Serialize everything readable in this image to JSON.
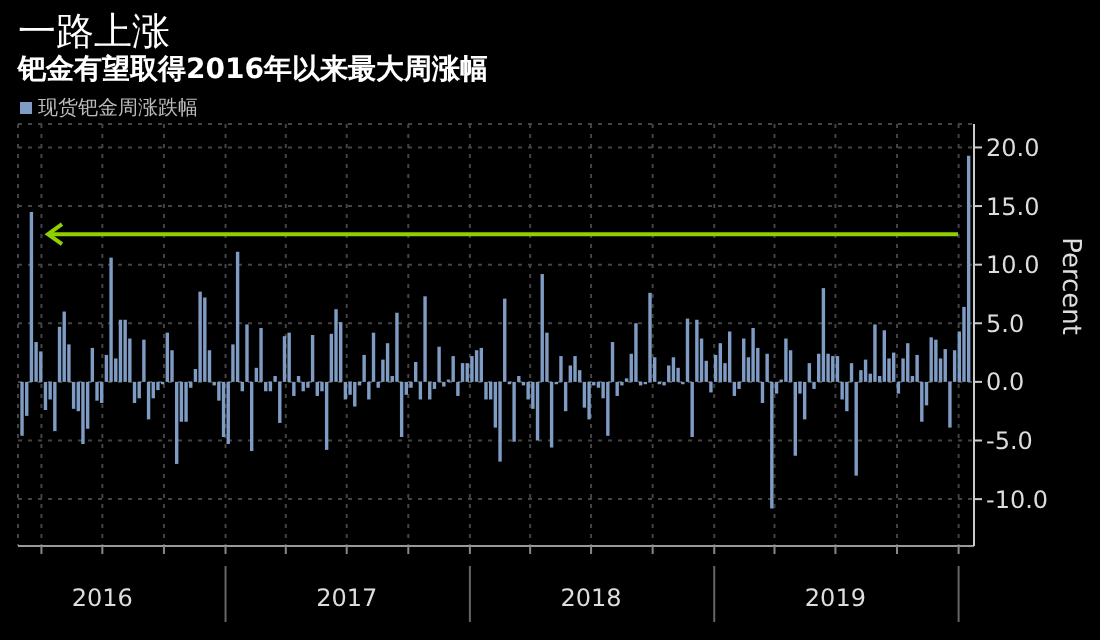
{
  "chart_data": {
    "type": "bar",
    "title": "一路上涨",
    "subtitle": "钯金有望取得2016年以来最大周涨幅",
    "ylabel": "Percent",
    "x": [
      "2016-03-04",
      "2016-03-11",
      "2016-03-18",
      "2016-03-25",
      "2016-04-01",
      "2016-04-08",
      "2016-04-15",
      "2016-04-22",
      "2016-04-29",
      "2016-05-06",
      "2016-05-13",
      "2016-05-20",
      "2016-05-27",
      "2016-06-03",
      "2016-06-10",
      "2016-06-17",
      "2016-06-24",
      "2016-07-01",
      "2016-07-08",
      "2016-07-15",
      "2016-07-22",
      "2016-07-29",
      "2016-08-05",
      "2016-08-12",
      "2016-08-19",
      "2016-08-26",
      "2016-09-02",
      "2016-09-09",
      "2016-09-16",
      "2016-09-23",
      "2016-09-30",
      "2016-10-07",
      "2016-10-14",
      "2016-10-21",
      "2016-10-28",
      "2016-11-04",
      "2016-11-11",
      "2016-11-18",
      "2016-11-25",
      "2016-12-02",
      "2016-12-09",
      "2016-12-16",
      "2016-12-23",
      "2016-12-30",
      "2017-01-06",
      "2017-01-13",
      "2017-01-20",
      "2017-01-27",
      "2017-02-03",
      "2017-02-10",
      "2017-02-17",
      "2017-02-24",
      "2017-03-03",
      "2017-03-10",
      "2017-03-17",
      "2017-03-24",
      "2017-03-31",
      "2017-04-07",
      "2017-04-14",
      "2017-04-21",
      "2017-04-28",
      "2017-05-05",
      "2017-05-12",
      "2017-05-19",
      "2017-05-26",
      "2017-06-02",
      "2017-06-09",
      "2017-06-16",
      "2017-06-23",
      "2017-06-30",
      "2017-07-07",
      "2017-07-14",
      "2017-07-21",
      "2017-07-28",
      "2017-08-04",
      "2017-08-11",
      "2017-08-18",
      "2017-08-25",
      "2017-09-01",
      "2017-09-08",
      "2017-09-15",
      "2017-09-22",
      "2017-09-29",
      "2017-10-06",
      "2017-10-13",
      "2017-10-20",
      "2017-10-27",
      "2017-11-03",
      "2017-11-10",
      "2017-11-17",
      "2017-11-24",
      "2017-12-01",
      "2017-12-08",
      "2017-12-15",
      "2017-12-22",
      "2017-12-29",
      "2018-01-05",
      "2018-01-12",
      "2018-01-19",
      "2018-01-26",
      "2018-02-02",
      "2018-02-09",
      "2018-02-16",
      "2018-02-23",
      "2018-03-02",
      "2018-03-09",
      "2018-03-16",
      "2018-03-23",
      "2018-03-30",
      "2018-04-06",
      "2018-04-13",
      "2018-04-20",
      "2018-04-27",
      "2018-05-04",
      "2018-05-11",
      "2018-05-18",
      "2018-05-25",
      "2018-06-01",
      "2018-06-08",
      "2018-06-15",
      "2018-06-22",
      "2018-06-29",
      "2018-07-06",
      "2018-07-13",
      "2018-07-20",
      "2018-07-27",
      "2018-08-03",
      "2018-08-10",
      "2018-08-17",
      "2018-08-24",
      "2018-08-31",
      "2018-09-07",
      "2018-09-14",
      "2018-09-21",
      "2018-09-28",
      "2018-10-05",
      "2018-10-12",
      "2018-10-19",
      "2018-10-26",
      "2018-11-02",
      "2018-11-09",
      "2018-11-16",
      "2018-11-23",
      "2018-11-30",
      "2018-12-07",
      "2018-12-14",
      "2018-12-21",
      "2018-12-28",
      "2019-01-04",
      "2019-01-11",
      "2019-01-18",
      "2019-01-25",
      "2019-02-01",
      "2019-02-08",
      "2019-02-15",
      "2019-02-22",
      "2019-03-01",
      "2019-03-08",
      "2019-03-15",
      "2019-03-22",
      "2019-03-29",
      "2019-04-05",
      "2019-04-12",
      "2019-04-19",
      "2019-04-26",
      "2019-05-03",
      "2019-05-10",
      "2019-05-17",
      "2019-05-24",
      "2019-05-31",
      "2019-06-07",
      "2019-06-14",
      "2019-06-21",
      "2019-06-28",
      "2019-07-05",
      "2019-07-12",
      "2019-07-19",
      "2019-07-26",
      "2019-08-02",
      "2019-08-09",
      "2019-08-16",
      "2019-08-23",
      "2019-08-30",
      "2019-09-06",
      "2019-09-13",
      "2019-09-20",
      "2019-09-27",
      "2019-10-04",
      "2019-10-11",
      "2019-10-18",
      "2019-10-25",
      "2019-11-01",
      "2019-11-08",
      "2019-11-15",
      "2019-11-22",
      "2019-11-29",
      "2019-12-06",
      "2019-12-13",
      "2019-12-20",
      "2019-12-27",
      "2020-01-03",
      "2020-01-10",
      "2020-01-17"
    ],
    "series": [
      {
        "name": "现货钯金周涨跌幅",
        "color": "#7f9cc4",
        "values": [
          -4.6,
          -2.9,
          14.5,
          3.4,
          2.6,
          -2.4,
          -1.5,
          -4.2,
          4.7,
          6.0,
          3.2,
          -2.3,
          -2.5,
          -5.3,
          -4.0,
          2.9,
          -1.6,
          -1.8,
          2.3,
          10.6,
          2.0,
          5.3,
          5.3,
          3.7,
          -1.8,
          -1.4,
          3.6,
          -3.2,
          -1.4,
          -0.7,
          -0.2,
          4.2,
          2.7,
          -7.0,
          -3.4,
          -3.4,
          -0.5,
          1.1,
          7.7,
          7.2,
          2.7,
          -0.3,
          -1.6,
          -4.7,
          -5.3,
          3.2,
          11.1,
          -0.8,
          4.9,
          -5.9,
          1.2,
          4.6,
          -0.8,
          -0.8,
          0.5,
          -3.5,
          3.9,
          4.2,
          -1.2,
          0.5,
          -0.8,
          -0.5,
          4.0,
          -1.2,
          -0.8,
          -5.8,
          4.1,
          6.2,
          5.1,
          -1.5,
          -1.1,
          -2.1,
          -0.3,
          2.3,
          -1.5,
          4.2,
          -0.5,
          1.9,
          3.3,
          0.5,
          5.9,
          -4.7,
          -1.1,
          -0.5,
          1.7,
          -1.5,
          7.3,
          -1.5,
          -0.6,
          3.0,
          -0.4,
          0.2,
          2.2,
          -1.2,
          1.6,
          1.6,
          2.2,
          2.7,
          2.9,
          -1.5,
          -1.5,
          -3.9,
          -6.8,
          7.1,
          -0.2,
          -5.1,
          0.5,
          -0.3,
          -1.5,
          -2.3,
          -5.0,
          9.2,
          4.2,
          -5.6,
          -0.2,
          2.2,
          -2.5,
          1.4,
          2.2,
          1.0,
          -2.2,
          -3.2,
          -0.3,
          -0.5,
          -1.4,
          -4.6,
          3.4,
          -1.2,
          -0.3,
          0.3,
          2.4,
          5.0,
          -0.3,
          -0.2,
          7.6,
          2.1,
          -0.2,
          -0.3,
          1.4,
          2.1,
          1.2,
          -0.2,
          5.4,
          -4.7,
          5.3,
          3.7,
          1.8,
          -0.9,
          2.3,
          3.3,
          1.6,
          4.3,
          -1.2,
          -0.6,
          3.7,
          2.1,
          4.6,
          2.9,
          -1.8,
          2.4,
          -10.8,
          -1.0,
          0.2,
          3.7,
          2.7,
          -6.3,
          -1.0,
          -3.2,
          1.6,
          -0.6,
          2.4,
          8.0,
          2.4,
          2.2,
          2.2,
          -1.5,
          -2.5,
          1.6,
          -8.0,
          1.0,
          1.9,
          0.7,
          4.9,
          0.5,
          4.4,
          2.0,
          2.5,
          -1.0,
          2.0,
          3.3,
          0.5,
          2.3,
          -3.4,
          -2.0,
          3.8,
          3.6,
          2.0,
          2.8,
          -3.9,
          2.7,
          4.3,
          6.4,
          19.3
        ]
      }
    ],
    "xlim": [
      "2016-02-26",
      "2020-01-24"
    ],
    "xticks": [
      {
        "value": "2016-04-01",
        "label": null
      },
      {
        "value": "2016-07-01",
        "label": "2016"
      },
      {
        "value": "2016-10-01",
        "label": null
      },
      {
        "value": "2017-01-01",
        "label": null
      },
      {
        "value": "2017-04-01",
        "label": null
      },
      {
        "value": "2017-07-01",
        "label": "2017"
      },
      {
        "value": "2017-10-01",
        "label": null
      },
      {
        "value": "2018-01-01",
        "label": null
      },
      {
        "value": "2018-04-01",
        "label": null
      },
      {
        "value": "2018-07-01",
        "label": "2018"
      },
      {
        "value": "2018-10-01",
        "label": null
      },
      {
        "value": "2019-01-01",
        "label": null
      },
      {
        "value": "2019-04-01",
        "label": null
      },
      {
        "value": "2019-07-01",
        "label": "2019"
      },
      {
        "value": "2019-10-01",
        "label": null
      },
      {
        "value": "2020-01-01",
        "label": null
      }
    ],
    "ylim": [
      -14,
      22
    ],
    "yticks": [
      {
        "value": -10,
        "label": "-10.0"
      },
      {
        "value": -5,
        "label": "-5.0"
      },
      {
        "value": 0,
        "label": "0.0"
      },
      {
        "value": 5,
        "label": "5.0"
      },
      {
        "value": 10,
        "label": "10.0"
      },
      {
        "value": 15,
        "label": "15.0"
      },
      {
        "value": 20,
        "label": "20.0"
      }
    ],
    "ref_lines": [
      {
        "axis": "y",
        "value": 12.6,
        "color": "#8fd000"
      }
    ],
    "grid": true,
    "legend": "top left"
  }
}
